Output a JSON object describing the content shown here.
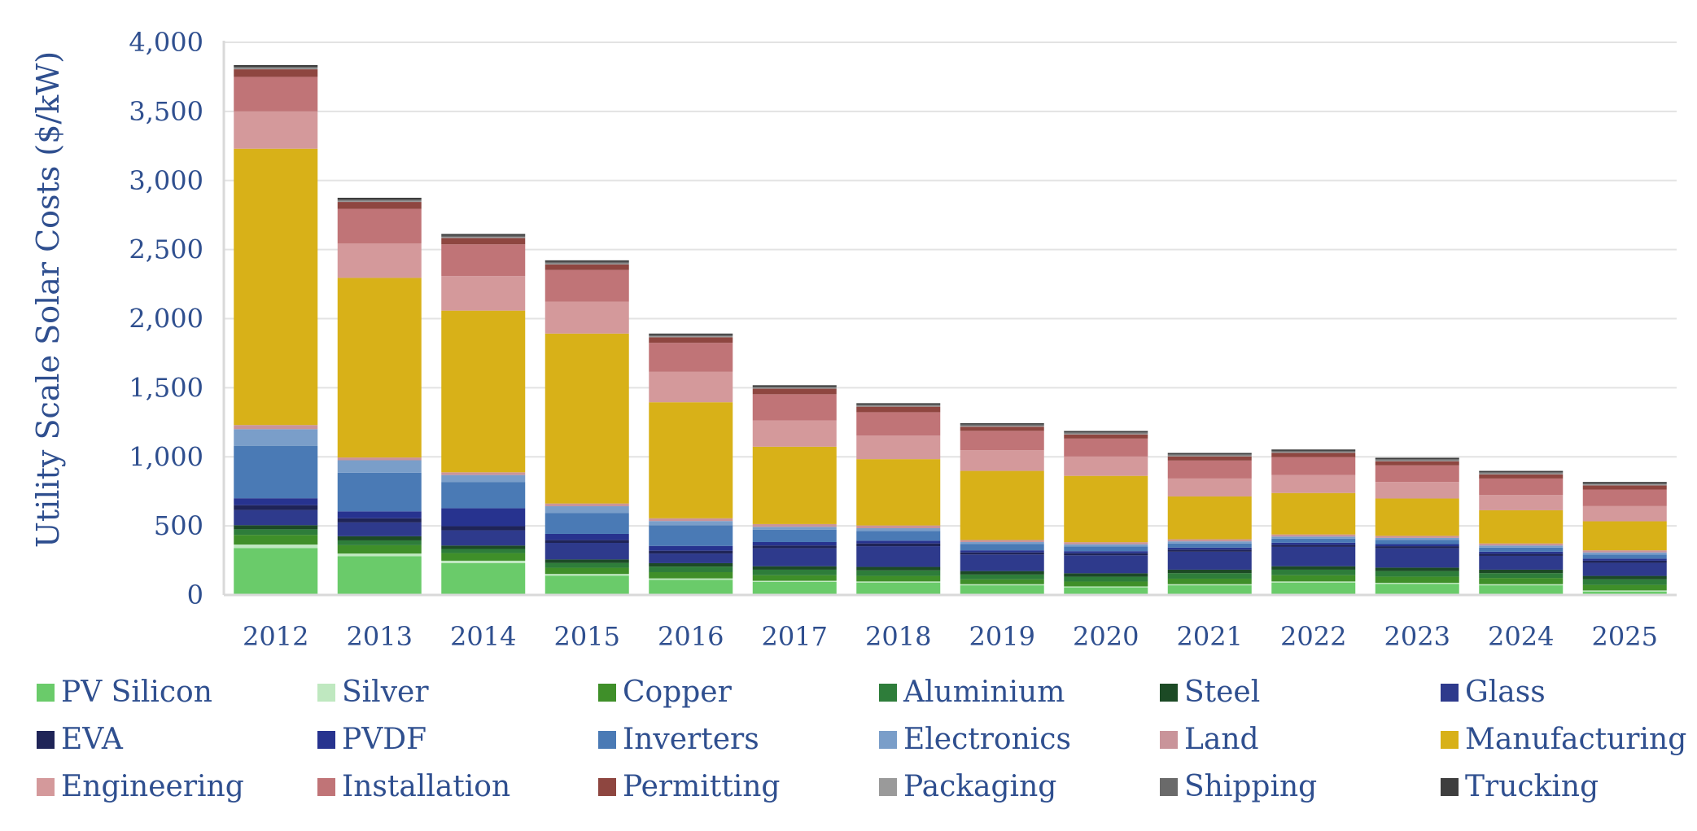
{
  "chart_data": {
    "type": "bar",
    "stacked": true,
    "title": "",
    "xlabel": "",
    "ylabel": "Utility Scale Solar Costs ($/kW)",
    "ylim": [
      0,
      4000
    ],
    "yticks": [
      0,
      500,
      1000,
      1500,
      2000,
      2500,
      3000,
      3500,
      4000
    ],
    "ytick_labels": [
      "0",
      "500",
      "1,000",
      "1,500",
      "2,000",
      "2,500",
      "3,000",
      "3,500",
      "4,000"
    ],
    "grid": true,
    "legend_position": "bottom",
    "categories": [
      "2012",
      "2013",
      "2014",
      "2015",
      "2016",
      "2017",
      "2018",
      "2019",
      "2020",
      "2021",
      "2022",
      "2023",
      "2024",
      "2025"
    ],
    "series": [
      {
        "name": "PV Silicon",
        "color": "#6acb6a",
        "values": [
          340,
          280,
          230,
          140,
          110,
          95,
          90,
          70,
          55,
          70,
          90,
          80,
          70,
          25
        ]
      },
      {
        "name": "Silver",
        "color": "#bfe8c0",
        "values": [
          25,
          20,
          18,
          12,
          10,
          8,
          8,
          8,
          7,
          8,
          8,
          8,
          8,
          8
        ]
      },
      {
        "name": "Copper",
        "color": "#3f8f29",
        "values": [
          70,
          60,
          55,
          45,
          45,
          40,
          40,
          35,
          35,
          40,
          45,
          45,
          45,
          40
        ]
      },
      {
        "name": "Aluminium",
        "color": "#2e7d3a",
        "values": [
          40,
          35,
          30,
          35,
          40,
          40,
          40,
          35,
          35,
          40,
          40,
          40,
          35,
          40
        ]
      },
      {
        "name": "Steel",
        "color": "#1c4a25",
        "values": [
          30,
          30,
          25,
          25,
          25,
          25,
          25,
          25,
          25,
          25,
          25,
          25,
          25,
          25
        ]
      },
      {
        "name": "Glass",
        "color": "#2e3a8c",
        "values": [
          110,
          100,
          110,
          120,
          70,
          130,
          150,
          120,
          130,
          130,
          140,
          140,
          100,
          95
        ]
      },
      {
        "name": "EVA",
        "color": "#1f2457",
        "values": [
          35,
          30,
          30,
          20,
          20,
          20,
          20,
          15,
          15,
          15,
          15,
          15,
          15,
          15
        ]
      },
      {
        "name": "PVDF",
        "color": "#27338f",
        "values": [
          50,
          50,
          130,
          45,
          35,
          25,
          20,
          15,
          15,
          15,
          15,
          15,
          15,
          15
        ]
      },
      {
        "name": "Inverters",
        "color": "#4a7ab5",
        "values": [
          380,
          280,
          190,
          150,
          150,
          90,
          70,
          45,
          35,
          30,
          30,
          30,
          30,
          30
        ]
      },
      {
        "name": "Electronics",
        "color": "#7a9ec9",
        "values": [
          120,
          90,
          50,
          50,
          30,
          20,
          20,
          15,
          15,
          15,
          15,
          15,
          15,
          15
        ]
      },
      {
        "name": "Land",
        "color": "#c9949a",
        "values": [
          30,
          20,
          20,
          20,
          20,
          20,
          20,
          15,
          15,
          15,
          15,
          15,
          15,
          15
        ]
      },
      {
        "name": "Manufacturing",
        "color": "#d8b118",
        "values": [
          2000,
          1300,
          1170,
          1230,
          840,
          560,
          480,
          500,
          480,
          310,
          300,
          270,
          240,
          210
        ]
      },
      {
        "name": "Engineering",
        "color": "#d4999b",
        "values": [
          270,
          250,
          250,
          230,
          220,
          190,
          170,
          150,
          140,
          130,
          130,
          120,
          110,
          110
        ]
      },
      {
        "name": "Installation",
        "color": "#c07477",
        "values": [
          250,
          250,
          230,
          230,
          210,
          190,
          170,
          140,
          130,
          130,
          130,
          120,
          120,
          120
        ]
      },
      {
        "name": "Permitting",
        "color": "#8e4640",
        "values": [
          55,
          50,
          45,
          40,
          40,
          40,
          40,
          30,
          30,
          30,
          30,
          30,
          30,
          30
        ]
      },
      {
        "name": "Packaging",
        "color": "#9a9a9a",
        "values": [
          8,
          8,
          8,
          8,
          7,
          7,
          7,
          7,
          7,
          7,
          7,
          7,
          7,
          7
        ]
      },
      {
        "name": "Shipping",
        "color": "#6a6a6a",
        "values": [
          10,
          10,
          10,
          10,
          9,
          8,
          8,
          8,
          8,
          8,
          8,
          8,
          8,
          8
        ]
      },
      {
        "name": "Trucking",
        "color": "#3e3e3e",
        "values": [
          12,
          12,
          12,
          12,
          11,
          10,
          10,
          10,
          10,
          10,
          10,
          10,
          10,
          10
        ]
      }
    ]
  }
}
